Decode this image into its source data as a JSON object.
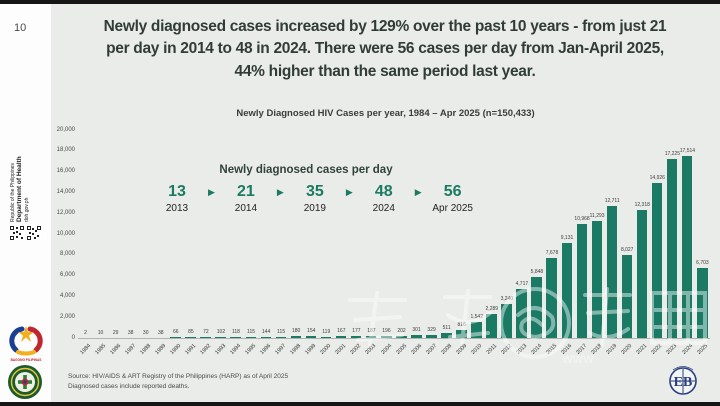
{
  "slide": {
    "page_number": "10"
  },
  "sidebar": {
    "org_line1": "Republic of the Philippines",
    "org_line2": "Department of Health",
    "org_line3": "doh.gov.ph",
    "bagong_label": "BAGONG PILIPINAS"
  },
  "headline": {
    "lines": [
      "Newly diagnosed cases increased by 129% over the past 10 years - from just 21",
      "per day in 2014 to 48 in 2024. There were 56 cases per day from Jan-April 2025,",
      "44% higher than the same period last year."
    ]
  },
  "chart_data": {
    "type": "bar",
    "title": "Newly Diagnosed HIV Cases per year, 1984 – Apr 2025 (n=150,433)",
    "categories": [
      "1984",
      "1985",
      "1986",
      "1987",
      "1988",
      "1989",
      "1990",
      "1991",
      "1992",
      "1993",
      "1994",
      "1995",
      "1996",
      "1997",
      "1998",
      "1999",
      "2000",
      "2001",
      "2002",
      "2003",
      "2004",
      "2005",
      "2006",
      "2007",
      "2008",
      "2009",
      "2010",
      "2011",
      "2012",
      "2013",
      "2014",
      "2015",
      "2016",
      "2017",
      "2018",
      "2019",
      "2020",
      "2021",
      "2022",
      "2023",
      "2024",
      "2025"
    ],
    "values": [
      2,
      10,
      29,
      38,
      30,
      38,
      66,
      85,
      72,
      102,
      118,
      115,
      144,
      115,
      180,
      154,
      119,
      167,
      177,
      187,
      196,
      202,
      301,
      329,
      511,
      816,
      1542,
      2289,
      3240,
      4717,
      5848,
      7678,
      9131,
      10968,
      11293,
      12711,
      8027,
      12318,
      14926,
      17225,
      17514,
      6703
    ],
    "ylim": [
      0,
      20000
    ],
    "ytick_step": 2000,
    "bar_color": "#1a7a64",
    "grid": false,
    "value_labels": true,
    "xlabel": "",
    "ylabel": ""
  },
  "inset": {
    "title": "Newly diagnosed cases per day",
    "arrow_icon": "▶",
    "items": [
      {
        "value": "13",
        "year": "2013"
      },
      {
        "value": "21",
        "year": "2014"
      },
      {
        "value": "35",
        "year": "2019"
      },
      {
        "value": "48",
        "year": "2024"
      },
      {
        "value": "56",
        "year": "Apr 2025"
      }
    ]
  },
  "source": {
    "line1": "Source: HIV/AIDS & ART Registry of the Philippines (HARP) as of April 2025",
    "line2": "Diagnosed cases include reported deaths."
  }
}
